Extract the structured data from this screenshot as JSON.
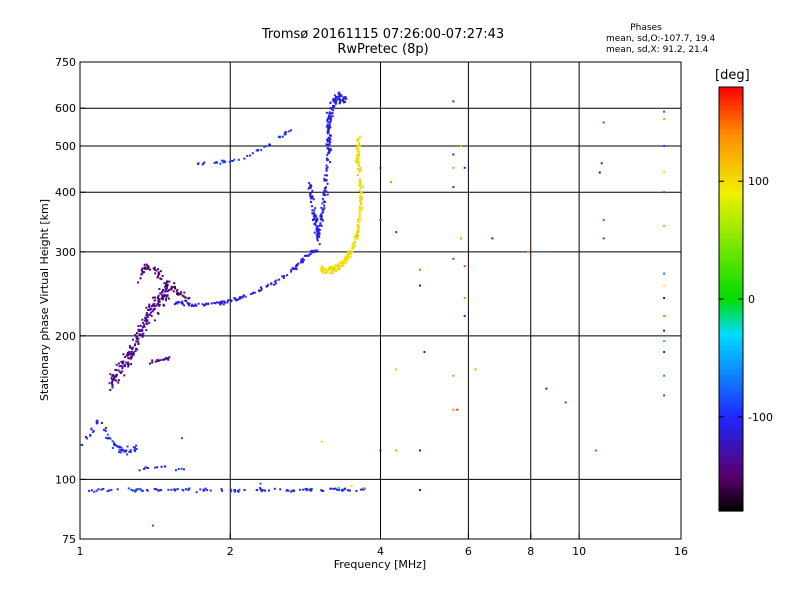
{
  "header": {
    "title": "Tromsø 20161115 07:26:00-07:27:43",
    "subtitle": "RwPretec (8p)",
    "phase_title": "Phases",
    "o_stats": "mean, sd,O:-107.7, 19.4",
    "x_stats": "mean, sd,X:  91.2, 21.4"
  },
  "colorbar": {
    "unit": "[deg]",
    "ticks": [
      "100",
      "0",
      "-100"
    ],
    "tick_values": [
      100,
      0,
      -100
    ],
    "range": [
      -180,
      180
    ]
  },
  "chart_data": {
    "type": "scatter",
    "xlabel": "Frequency [MHz]",
    "ylabel": "Stationary phase Virtual Height [km]",
    "xscale": "log",
    "yscale": "log",
    "xlim": [
      1,
      16
    ],
    "ylim": [
      75,
      750
    ],
    "xticks": [
      1,
      2,
      4,
      6,
      8,
      10,
      16
    ],
    "yticks": [
      75,
      100,
      200,
      300,
      400,
      500,
      600,
      750
    ],
    "xgrid": [
      2,
      4,
      6,
      8,
      10
    ],
    "ygrid": [
      100,
      200,
      300,
      400,
      500,
      600
    ],
    "grid": true,
    "series": [
      {
        "trace": [
          [
            1.0,
            95
          ],
          [
            1.1,
            95
          ],
          [
            1.2,
            95
          ],
          [
            1.3,
            95
          ],
          [
            1.4,
            95
          ],
          [
            1.52,
            95
          ],
          [
            1.62,
            95
          ],
          [
            1.8,
            95
          ],
          [
            2.0,
            95
          ],
          [
            2.2,
            95
          ],
          [
            2.5,
            95
          ],
          [
            2.8,
            95
          ],
          [
            3.1,
            95
          ],
          [
            3.4,
            95
          ],
          [
            3.8,
            95
          ]
        ],
        "spread": [
          0.025,
          0.012
        ],
        "phase": -100,
        "count": 120
      },
      {
        "trace": [
          [
            1.32,
            105
          ],
          [
            1.4,
            106
          ],
          [
            1.5,
            106
          ],
          [
            1.62,
            105
          ]
        ],
        "spread": [
          0.015,
          0.01
        ],
        "phase": -100,
        "count": 14
      },
      {
        "trace": [
          [
            1.0,
            118
          ],
          [
            1.05,
            125
          ],
          [
            1.1,
            135
          ],
          [
            1.15,
            120
          ],
          [
            1.2,
            115
          ],
          [
            1.25,
            115
          ],
          [
            1.3,
            117
          ]
        ],
        "spread": [
          0.02,
          0.03
        ],
        "phase": -100,
        "count": 60
      },
      {
        "trace": [
          [
            1.15,
            160
          ],
          [
            1.2,
            170
          ],
          [
            1.25,
            180
          ],
          [
            1.3,
            195
          ],
          [
            1.35,
            215
          ],
          [
            1.4,
            230
          ],
          [
            1.45,
            240
          ],
          [
            1.5,
            250
          ]
        ],
        "spread": [
          0.02,
          0.07
        ],
        "phase": -140,
        "count": 220
      },
      {
        "trace": [
          [
            1.35,
            175
          ],
          [
            1.45,
            178
          ],
          [
            1.52,
            180
          ]
        ],
        "spread": [
          0.012,
          0.01
        ],
        "phase": -140,
        "count": 20
      },
      {
        "trace": [
          [
            1.3,
            255
          ],
          [
            1.35,
            275
          ],
          [
            1.4,
            280
          ],
          [
            1.45,
            265
          ],
          [
            1.55,
            250
          ],
          [
            1.65,
            238
          ]
        ],
        "spread": [
          0.02,
          0.03
        ],
        "phase": -150,
        "count": 70
      },
      {
        "trace": [
          [
            1.55,
            235
          ],
          [
            1.7,
            232
          ],
          [
            1.9,
            234
          ],
          [
            2.1,
            240
          ],
          [
            2.3,
            250
          ],
          [
            2.5,
            262
          ],
          [
            2.7,
            278
          ],
          [
            2.85,
            295
          ],
          [
            3.0,
            305
          ]
        ],
        "spread": [
          0.012,
          0.012
        ],
        "phase": -110,
        "count": 130
      },
      {
        "trace": [
          [
            1.7,
            458
          ],
          [
            1.9,
            462
          ],
          [
            2.1,
            470
          ],
          [
            2.3,
            490
          ],
          [
            2.5,
            520
          ],
          [
            2.65,
            540
          ]
        ],
        "spread": [
          0.01,
          0.01
        ],
        "phase": -95,
        "count": 45
      },
      {
        "trace": [
          [
            2.88,
            420
          ],
          [
            2.95,
            360
          ],
          [
            3.0,
            320
          ],
          [
            3.1,
            400
          ],
          [
            3.15,
            500
          ],
          [
            3.15,
            560
          ],
          [
            3.2,
            610
          ],
          [
            3.28,
            630
          ],
          [
            3.4,
            625
          ]
        ],
        "spread": [
          0.015,
          0.04
        ],
        "phase": -110,
        "count": 260
      },
      {
        "trace": [
          [
            3.05,
            275
          ],
          [
            3.2,
            275
          ],
          [
            3.35,
            282
          ],
          [
            3.5,
            300
          ],
          [
            3.6,
            330
          ],
          [
            3.65,
            370
          ],
          [
            3.65,
            420
          ],
          [
            3.6,
            470
          ],
          [
            3.62,
            520
          ]
        ],
        "spread": [
          0.012,
          0.03
        ],
        "phase": 100,
        "count": 240
      }
    ],
    "scatter_points": [
      [
        5.6,
        620,
        -100
      ],
      [
        5.6,
        480,
        -100
      ],
      [
        5.6,
        450,
        140
      ],
      [
        5.8,
        500,
        120
      ],
      [
        5.6,
        410,
        -100
      ],
      [
        5.9,
        450,
        -110
      ],
      [
        4.0,
        450,
        -110
      ],
      [
        4.2,
        420,
        140
      ],
      [
        4.0,
        350,
        -90
      ],
      [
        4.3,
        330,
        -100
      ],
      [
        5.8,
        320,
        130
      ],
      [
        5.9,
        280,
        160
      ],
      [
        5.6,
        290,
        -80
      ],
      [
        6.7,
        320,
        -120
      ],
      [
        7.9,
        300,
        140
      ],
      [
        4.8,
        275,
        150
      ],
      [
        4.8,
        255,
        -130
      ],
      [
        5.9,
        240,
        140
      ],
      [
        5.9,
        220,
        -100
      ],
      [
        4.9,
        185,
        -140
      ],
      [
        4.3,
        170,
        120
      ],
      [
        5.6,
        165,
        140
      ],
      [
        6.2,
        170,
        130
      ],
      [
        5.6,
        140,
        140
      ],
      [
        4.3,
        115,
        140
      ],
      [
        5.7,
        140,
        170
      ],
      [
        3.05,
        120,
        80
      ],
      [
        4.0,
        115,
        -140
      ],
      [
        4.8,
        115,
        -130
      ],
      [
        8.6,
        155,
        -140
      ],
      [
        9.4,
        145,
        -80
      ],
      [
        10.8,
        115,
        160
      ],
      [
        11.2,
        560,
        -80
      ],
      [
        11.2,
        350,
        -70
      ],
      [
        11.1,
        460,
        -100
      ],
      [
        11.2,
        320,
        -90
      ],
      [
        11.0,
        440,
        -150
      ],
      [
        14.8,
        590,
        -80
      ],
      [
        14.8,
        570,
        40
      ],
      [
        14.8,
        500,
        -90
      ],
      [
        14.8,
        440,
        100
      ],
      [
        14.8,
        400,
        -80
      ],
      [
        14.8,
        340,
        130
      ],
      [
        14.8,
        270,
        -70
      ],
      [
        14.8,
        255,
        90
      ],
      [
        14.8,
        240,
        -150
      ],
      [
        14.8,
        220,
        20
      ],
      [
        14.8,
        205,
        -140
      ],
      [
        14.8,
        195,
        -40
      ],
      [
        14.8,
        185,
        -120
      ],
      [
        14.8,
        165,
        -60
      ],
      [
        14.8,
        150,
        -80
      ],
      [
        1.6,
        122,
        -75
      ],
      [
        1.4,
        80,
        -80
      ],
      [
        2.3,
        98,
        -80
      ],
      [
        2.6,
        95,
        -90
      ],
      [
        3.3,
        96,
        20
      ],
      [
        3.5,
        97,
        100
      ],
      [
        3.7,
        96,
        110
      ],
      [
        4.8,
        95,
        -120
      ]
    ]
  }
}
